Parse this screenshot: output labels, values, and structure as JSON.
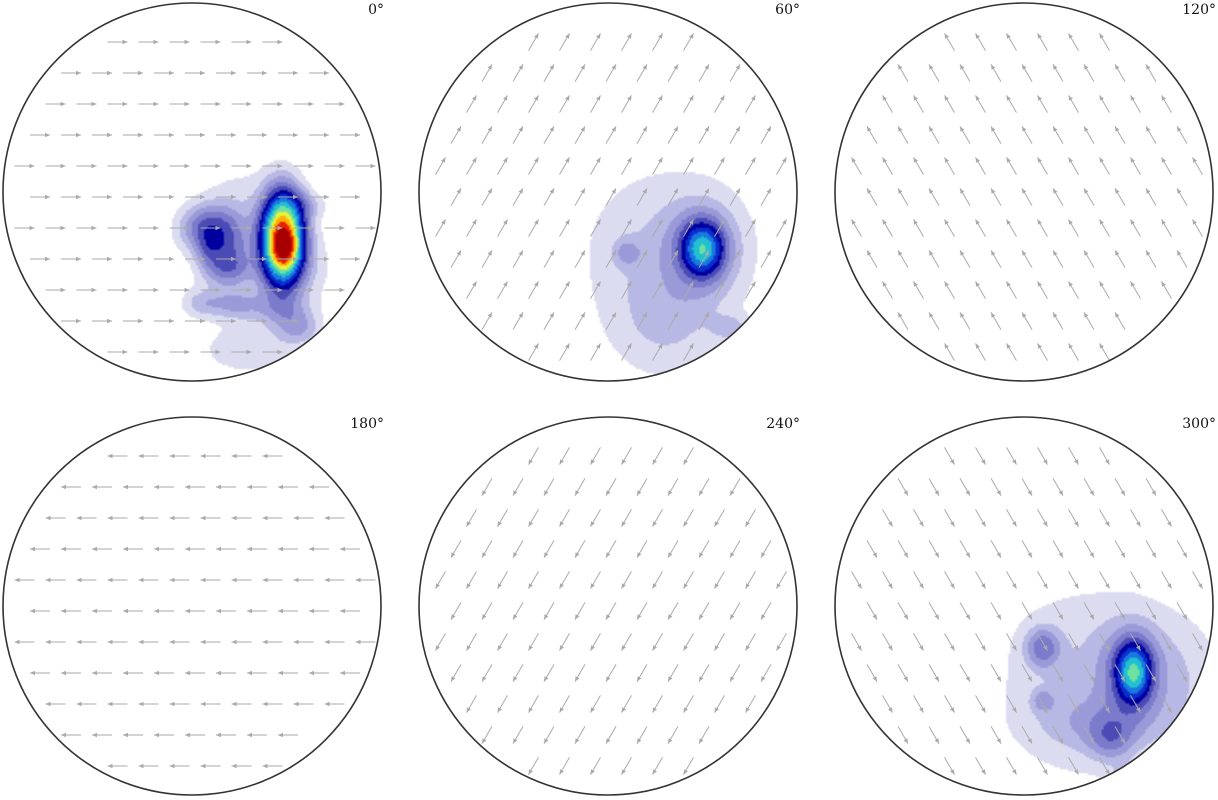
{
  "chart_data": {
    "type": "contour-field",
    "layout": {
      "rows": 2,
      "cols": 3
    },
    "colors": {
      "circle": "#333333",
      "arrow": "#aaaaaa",
      "colormap": [
        "#ffffff",
        "#dcdcf0",
        "#b8b8e4",
        "#9a9ad8",
        "#7b7bcc",
        "#4b4bb6",
        "#0000a0",
        "#0a2ecc",
        "#1a78e0",
        "#20c0d0",
        "#70e0a0",
        "#e8f040",
        "#ffb000",
        "#e82000",
        "#a80000"
      ]
    },
    "panels": [
      {
        "label": "0°",
        "arrow_direction_deg": 0,
        "blobs": [
          {
            "x": 0.27,
            "y": 0.28,
            "sx": 0.16,
            "sy": 0.24,
            "amp": 1.0
          },
          {
            "x": 0.48,
            "y": 0.25,
            "sx": 0.07,
            "sy": 0.15,
            "amp": 13.5
          },
          {
            "x": 0.49,
            "y": 0.3,
            "sx": 0.04,
            "sy": 0.06,
            "amp": 3.5
          },
          {
            "x": 0.07,
            "y": 0.19,
            "sx": 0.09,
            "sy": 0.08,
            "amp": 2.2
          },
          {
            "x": 0.17,
            "y": 0.3,
            "sx": 0.07,
            "sy": 0.12,
            "amp": 1.8
          },
          {
            "x": 0.08,
            "y": 0.3,
            "sx": 0.04,
            "sy": 0.07,
            "amp": 1.0
          },
          {
            "x": 0.2,
            "y": 0.4,
            "sx": 0.08,
            "sy": 0.05,
            "amp": 0.9
          },
          {
            "x": 0.23,
            "y": 0.6,
            "sx": 0.09,
            "sy": 0.05,
            "amp": 1.0
          },
          {
            "x": 0.47,
            "y": 0.62,
            "sx": 0.1,
            "sy": 0.06,
            "amp": 1.1
          },
          {
            "x": 0.56,
            "y": 0.72,
            "sx": 0.08,
            "sy": 0.06,
            "amp": 1.3
          },
          {
            "x": 0.05,
            "y": 0.59,
            "sx": 0.07,
            "sy": 0.05,
            "amp": 0.9
          },
          {
            "x": 0.58,
            "y": 0.07,
            "sx": 0.08,
            "sy": 0.05,
            "amp": 0.9
          },
          {
            "x": 0.3,
            "y": 0.84,
            "sx": 0.16,
            "sy": 0.08,
            "amp": 0.7
          },
          {
            "x": 0.6,
            "y": 0.4,
            "sx": 0.1,
            "sy": 0.14,
            "amp": 0.6
          }
        ]
      },
      {
        "label": "60°",
        "arrow_direction_deg": 60,
        "blobs": [
          {
            "x": 0.5,
            "y": 0.3,
            "sx": 0.07,
            "sy": 0.09,
            "amp": 5.5
          },
          {
            "x": 0.5,
            "y": 0.3,
            "sx": 0.13,
            "sy": 0.16,
            "amp": 1.6
          },
          {
            "x": 0.1,
            "y": 0.32,
            "sx": 0.05,
            "sy": 0.05,
            "amp": 1.0
          },
          {
            "x": 0.3,
            "y": 0.3,
            "sx": 0.3,
            "sy": 0.3,
            "amp": 0.8
          },
          {
            "x": 0.3,
            "y": 0.7,
            "sx": 0.2,
            "sy": 0.2,
            "amp": 0.7
          },
          {
            "x": 0.65,
            "y": 0.72,
            "sx": 0.07,
            "sy": 0.05,
            "amp": 0.8
          }
        ]
      },
      {
        "label": "120°",
        "arrow_direction_deg": 120,
        "blobs": []
      },
      {
        "label": "180°",
        "arrow_direction_deg": 180,
        "blobs": []
      },
      {
        "label": "240°",
        "arrow_direction_deg": 240,
        "blobs": []
      },
      {
        "label": "300°",
        "arrow_direction_deg": 300,
        "blobs": [
          {
            "x": 0.58,
            "y": 0.35,
            "sx": 0.06,
            "sy": 0.1,
            "amp": 5.8
          },
          {
            "x": 0.57,
            "y": 0.35,
            "sx": 0.12,
            "sy": 0.18,
            "amp": 1.8
          },
          {
            "x": 0.1,
            "y": 0.22,
            "sx": 0.06,
            "sy": 0.07,
            "amp": 2.0
          },
          {
            "x": 0.1,
            "y": 0.5,
            "sx": 0.04,
            "sy": 0.04,
            "amp": 1.1
          },
          {
            "x": 0.46,
            "y": 0.7,
            "sx": 0.08,
            "sy": 0.08,
            "amp": 1.5
          },
          {
            "x": 0.4,
            "y": 0.62,
            "sx": 0.22,
            "sy": 0.1,
            "amp": 0.8
          },
          {
            "x": 0.3,
            "y": 0.4,
            "sx": 0.3,
            "sy": 0.35,
            "amp": 0.8
          },
          {
            "x": 0.55,
            "y": 0.9,
            "sx": 0.06,
            "sy": 0.04,
            "amp": 0.9
          },
          {
            "x": 0.85,
            "y": 0.4,
            "sx": 0.15,
            "sy": 0.25,
            "amp": 0.6
          }
        ]
      }
    ]
  }
}
